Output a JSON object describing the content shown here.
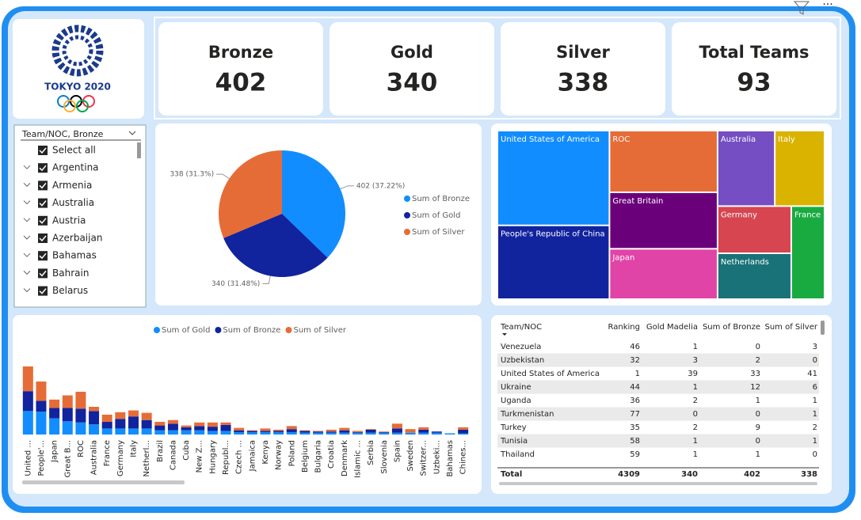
{
  "logo_text": "TOKYO 2020",
  "cards": [
    {
      "label": "Bronze",
      "value": 402
    },
    {
      "label": "Gold",
      "value": 340
    },
    {
      "label": "Silver",
      "value": 338
    },
    {
      "label": "Total Teams",
      "value": 93
    }
  ],
  "slicer": {
    "header": "Team/NOC, Bronze",
    "items": [
      "Select all",
      "Argentina",
      "Armenia",
      "Australia",
      "Austria",
      "Azerbaijan",
      "Bahamas",
      "Bahrain",
      "Belarus"
    ]
  },
  "chart_data": [
    {
      "type": "pie",
      "categories": [
        "Sum of Bronze",
        "Sum of Gold",
        "Sum of Silver"
      ],
      "values": [
        402,
        340,
        338
      ],
      "value_labels": [
        "402 (37.22%)",
        "340 (31.48%)",
        "338 (31.3%)"
      ],
      "colors": [
        "#118dff",
        "#12239e",
        "#e66c37"
      ],
      "legend": "right"
    },
    {
      "type": "treemap",
      "categories": [
        "United States of America",
        "People's Republic of China",
        "ROC",
        "Great Britain",
        "Japan",
        "Australia",
        "Italy",
        "Germany",
        "Netherlands",
        "France"
      ],
      "values": [
        113,
        88,
        71,
        65,
        58,
        46,
        40,
        37,
        36,
        33
      ],
      "colors": [
        "#118dff",
        "#12239e",
        "#e66c37",
        "#6b007b",
        "#e044a7",
        "#744ec2",
        "#d9b300",
        "#d64550",
        "#197278",
        "#1aab40"
      ]
    },
    {
      "type": "stacked_bar",
      "legend": "top",
      "categories": [
        "United ...",
        "People'...",
        "Japan",
        "Great B...",
        "ROC",
        "Australia",
        "France",
        "Germany",
        "Italy",
        "Netherl...",
        "Brazil",
        "Canada",
        "Cuba",
        "New Z...",
        "Hungary",
        "Republ...",
        "Czech ...",
        "Jamaica",
        "Kenya",
        "Norway",
        "Poland",
        "Belgium",
        "Bulgaria",
        "Croatia",
        "Denmark",
        "Islamic ...",
        "Serbia",
        "Slovenia",
        "Spain",
        "Sweden",
        "Switzer...",
        "Uzbeki...",
        "Bahamas",
        "Chines..."
      ],
      "series": [
        {
          "name": "Sum of Gold",
          "color": "#118dff",
          "values": [
            39,
            38,
            27,
            22,
            20,
            17,
            10,
            10,
            10,
            10,
            7,
            7,
            7,
            7,
            6,
            6,
            4,
            4,
            4,
            4,
            4,
            3,
            3,
            3,
            3,
            3,
            3,
            3,
            3,
            3,
            3,
            3,
            2,
            2
          ]
        },
        {
          "name": "Sum of Bronze",
          "color": "#12239e",
          "values": [
            33,
            18,
            17,
            22,
            23,
            22,
            11,
            16,
            20,
            14,
            8,
            11,
            5,
            7,
            7,
            10,
            3,
            2,
            2,
            2,
            5,
            3,
            2,
            2,
            4,
            1,
            5,
            1,
            7,
            0,
            5,
            2,
            0,
            6
          ]
        },
        {
          "name": "Sum of Silver",
          "color": "#e66c37",
          "values": [
            41,
            32,
            14,
            21,
            28,
            7,
            12,
            11,
            10,
            12,
            6,
            6,
            3,
            6,
            7,
            4,
            4,
            1,
            4,
            2,
            5,
            1,
            1,
            3,
            4,
            2,
            1,
            1,
            8,
            6,
            4,
            0,
            0,
            4
          ]
        }
      ]
    }
  ],
  "table": {
    "columns": [
      "Team/NOC",
      "Ranking",
      "Gold Madelia",
      "Sum of Bronze",
      "Sum of Silver"
    ],
    "rows": [
      [
        "Venezuela",
        46,
        1,
        0,
        3
      ],
      [
        "Uzbekistan",
        32,
        3,
        2,
        0
      ],
      [
        "United States of America",
        1,
        39,
        33,
        41
      ],
      [
        "Ukraine",
        44,
        1,
        12,
        6
      ],
      [
        "Uganda",
        36,
        2,
        1,
        1
      ],
      [
        "Turkmenistan",
        77,
        0,
        0,
        1
      ],
      [
        "Turkey",
        35,
        2,
        9,
        2
      ],
      [
        "Tunisia",
        58,
        1,
        0,
        1
      ],
      [
        "Thailand",
        59,
        1,
        1,
        0
      ]
    ],
    "total": [
      "Total",
      4309,
      340,
      402,
      338
    ]
  }
}
